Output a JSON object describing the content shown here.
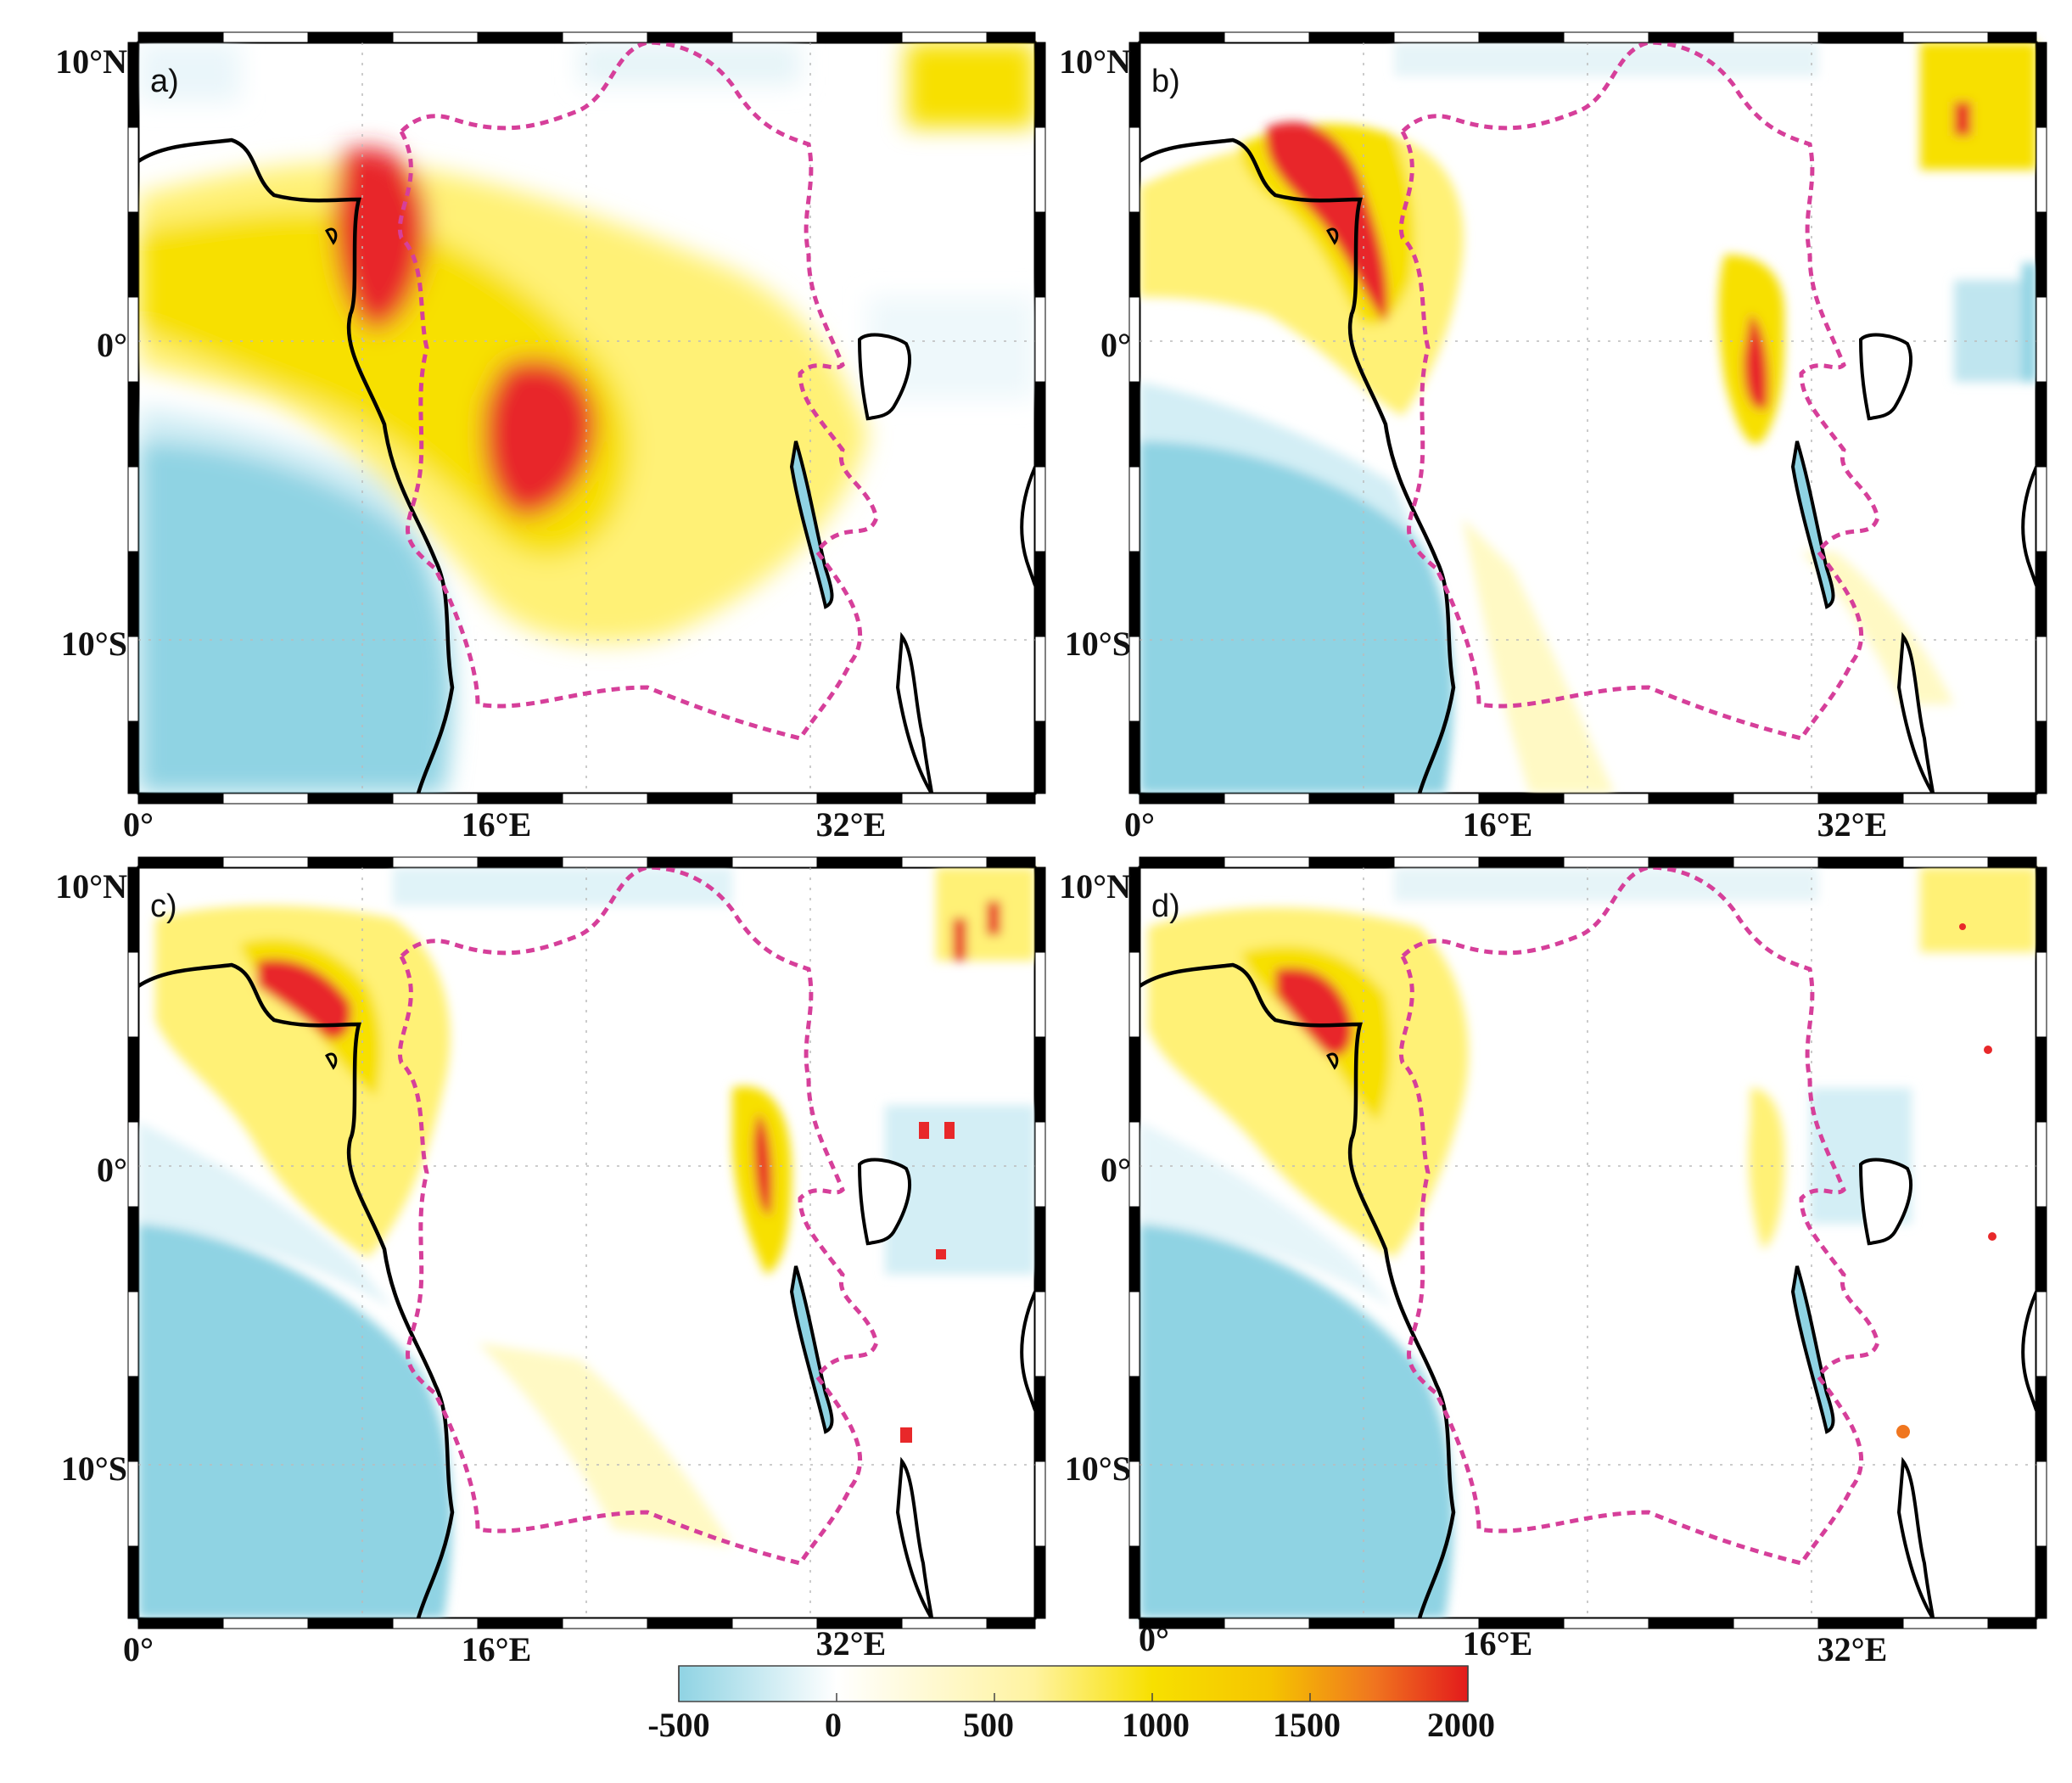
{
  "figure": {
    "panels": [
      {
        "id": "a",
        "label": "a)",
        "lat_labels": [
          "10°N",
          "0°",
          "10°S"
        ],
        "lon_labels": [
          "0°",
          "16°E",
          "32°E"
        ]
      },
      {
        "id": "b",
        "label": "b)",
        "lat_labels": [
          "10°N",
          "0°",
          "10°S"
        ],
        "lon_labels": [
          "0°",
          "16°E",
          "32°E"
        ]
      },
      {
        "id": "c",
        "label": "c)",
        "lat_labels": [
          "10°N",
          "0°",
          "10°S"
        ],
        "lon_labels": [
          "0°",
          "16°E",
          "32°E"
        ]
      },
      {
        "id": "d",
        "label": "d)",
        "lat_labels": [
          "10°N",
          "0°",
          "10°S"
        ],
        "lon_labels": [
          "0°",
          "16°E",
          "32°E"
        ]
      }
    ],
    "map_extent": {
      "lon_min": 0,
      "lon_max": 40,
      "lat_min": -15,
      "lat_max": 10
    },
    "colorbar": {
      "ticks": [
        "-500",
        "0",
        "500",
        "1000",
        "1500",
        "2000"
      ],
      "range": [
        -500,
        2000
      ],
      "colors": {
        "low": "#8fd3e3",
        "zero": "#ffffff",
        "mid": "#fff176",
        "high": "#f5d800",
        "max": "#e8282a"
      }
    },
    "colors": {
      "basin_boundary": "#d63f9a",
      "coastline": "#000000",
      "ocean_negative": "#8fd3e3"
    }
  }
}
